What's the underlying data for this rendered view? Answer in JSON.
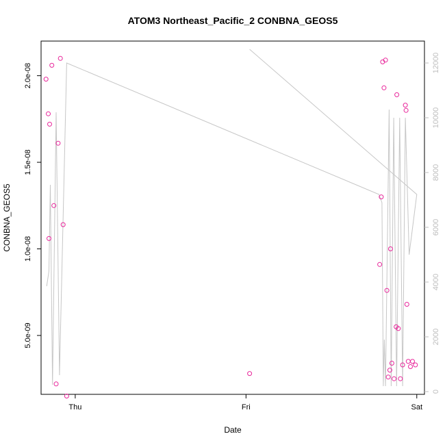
{
  "chart_data": {
    "type": "scatter",
    "title": "ATOM3 Northeast_Pacific_2 CONBNA_GEOS5",
    "xlabel": "Date",
    "ylabel": "CONBNA_GEOS5",
    "x_ticks": [
      {
        "label": "Thu",
        "value": 0.0
      },
      {
        "label": "Fri",
        "value": 1.0
      },
      {
        "label": "Sat",
        "value": 2.0
      }
    ],
    "xlim": [
      -0.2,
      2.045
    ],
    "ylim": [
      1.6e-09,
      2.2e-08
    ],
    "y_ticks": [
      {
        "label": "5.0e-09",
        "value": 5e-09
      },
      {
        "label": "1.0e-08",
        "value": 1e-08
      },
      {
        "label": "1.5e-08",
        "value": 1.5e-08
      },
      {
        "label": "2.0e-08",
        "value": 2e-08
      }
    ],
    "y2lim": [
      -100,
      12800
    ],
    "y2_ticks": [
      {
        "label": "0",
        "value": 0
      },
      {
        "label": "2000",
        "value": 2000
      },
      {
        "label": "4000",
        "value": 4000
      },
      {
        "label": "6000",
        "value": 6000
      },
      {
        "label": "8000",
        "value": 8000
      },
      {
        "label": "10000",
        "value": 10000
      },
      {
        "label": "12000",
        "value": 12000
      }
    ],
    "colors": {
      "points": "#e8259a",
      "line": "#c6c6c6",
      "right_axis": "#bdbdbd"
    },
    "points": [
      {
        "x": -0.171,
        "y": 1.98e-08
      },
      {
        "x": -0.158,
        "y": 1.78e-08
      },
      {
        "x": -0.154,
        "y": 1.06e-08
      },
      {
        "x": -0.15,
        "y": 1.72e-08
      },
      {
        "x": -0.137,
        "y": 2.06e-08
      },
      {
        "x": -0.125,
        "y": 1.25e-08
      },
      {
        "x": -0.112,
        "y": 2.2e-09
      },
      {
        "x": -0.1,
        "y": 1.61e-08
      },
      {
        "x": -0.087,
        "y": 2.1e-08
      },
      {
        "x": -0.071,
        "y": 1.14e-08
      },
      {
        "x": -0.05,
        "y": 1.5e-09
      },
      {
        "x": 1.021,
        "y": 2.8e-09
      },
      {
        "x": 1.783,
        "y": 9.1e-09
      },
      {
        "x": 1.792,
        "y": 1.3e-08
      },
      {
        "x": 1.8,
        "y": 2.08e-08
      },
      {
        "x": 1.808,
        "y": 1.93e-08
      },
      {
        "x": 1.817,
        "y": 2.09e-08
      },
      {
        "x": 1.825,
        "y": 7.6e-09
      },
      {
        "x": 1.833,
        "y": 2.6e-09
      },
      {
        "x": 1.842,
        "y": 3e-09
      },
      {
        "x": 1.846,
        "y": 1e-08
      },
      {
        "x": 1.854,
        "y": 3.4e-09
      },
      {
        "x": 1.867,
        "y": 2.5e-09
      },
      {
        "x": 1.879,
        "y": 5.5e-09
      },
      {
        "x": 1.883,
        "y": 1.89e-08
      },
      {
        "x": 1.892,
        "y": 5.4e-09
      },
      {
        "x": 1.904,
        "y": 2.5e-09
      },
      {
        "x": 1.917,
        "y": 3.3e-09
      },
      {
        "x": 1.933,
        "y": 1.83e-08
      },
      {
        "x": 1.937,
        "y": 1.8e-08
      },
      {
        "x": 1.942,
        "y": 6.8e-09
      },
      {
        "x": 1.95,
        "y": 3.5e-09
      },
      {
        "x": 1.963,
        "y": 3.2e-09
      },
      {
        "x": 1.975,
        "y": 3.5e-09
      },
      {
        "x": 1.992,
        "y": 3.3e-09
      }
    ],
    "line": [
      {
        "x": -0.167,
        "y2": 3850
      },
      {
        "x": -0.154,
        "y2": 4400
      },
      {
        "x": -0.146,
        "y2": 7550
      },
      {
        "x": -0.133,
        "y2": 250
      },
      {
        "x": -0.112,
        "y2": 10200
      },
      {
        "x": -0.092,
        "y2": 600
      },
      {
        "x": -0.05,
        "y2": 12000
      },
      {
        "x": 1.779,
        "y2": 7200
      },
      {
        "x": 1.796,
        "y2": 6900
      },
      {
        "x": 1.804,
        "y2": 200
      },
      {
        "x": 1.81,
        "y2": 1900
      },
      {
        "x": 1.817,
        "y2": 200
      },
      {
        "x": 1.838,
        "y2": 10300
      },
      {
        "x": 1.85,
        "y2": 200
      },
      {
        "x": 1.865,
        "y2": 10000
      },
      {
        "x": 1.882,
        "y2": 200
      },
      {
        "x": 1.9,
        "y2": 10000
      },
      {
        "x": 1.917,
        "y2": 200
      },
      {
        "x": 1.933,
        "y2": 10000
      },
      {
        "x": 1.955,
        "y2": 5000
      },
      {
        "x": 2.0,
        "y2": 7200
      },
      {
        "x": 1.021,
        "y2": 12500
      }
    ]
  }
}
